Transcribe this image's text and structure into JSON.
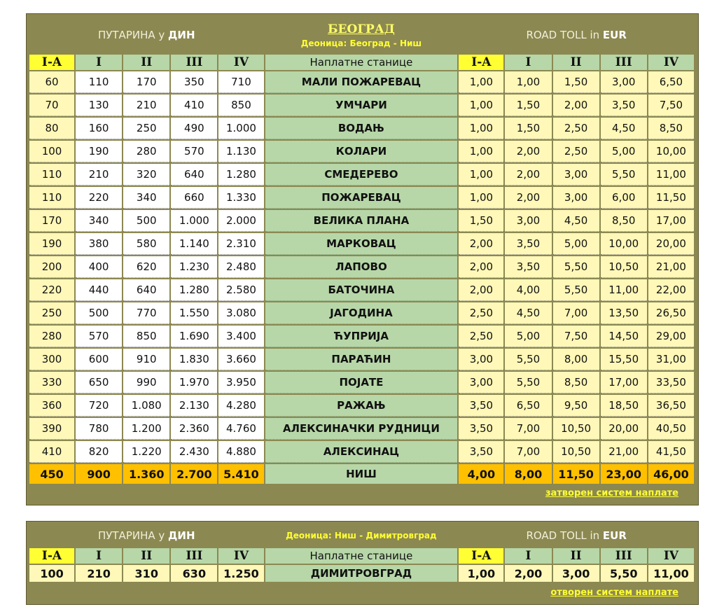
{
  "header": {
    "din_prefix": "ПУТАРИНА у",
    "din_unit": "ДИН",
    "city": "БЕОГРАД",
    "section1": "Деоница: Београд - Ниш",
    "eur_prefix": "ROAD TOLL in",
    "eur_unit": "EUR",
    "col_ia": "I-A",
    "col_i": "I",
    "col_ii": "II",
    "col_iii": "III",
    "col_iv": "IV",
    "stations_label": "Наплатне станице"
  },
  "rows": [
    {
      "din": [
        "60",
        "110",
        "170",
        "350",
        "710"
      ],
      "station": "МАЛИ ПОЖАРЕВАЦ",
      "eur": [
        "1,00",
        "1,00",
        "1,50",
        "3,00",
        "6,50"
      ]
    },
    {
      "din": [
        "70",
        "130",
        "210",
        "410",
        "850"
      ],
      "station": "УМЧАРИ",
      "eur": [
        "1,00",
        "1,50",
        "2,00",
        "3,50",
        "7,50"
      ]
    },
    {
      "din": [
        "80",
        "160",
        "250",
        "490",
        "1.000"
      ],
      "station": "ВОДАЊ",
      "eur": [
        "1,00",
        "1,50",
        "2,50",
        "4,50",
        "8,50"
      ]
    },
    {
      "din": [
        "100",
        "190",
        "280",
        "570",
        "1.130"
      ],
      "station": "КОЛАРИ",
      "eur": [
        "1,00",
        "2,00",
        "2,50",
        "5,00",
        "10,00"
      ]
    },
    {
      "din": [
        "110",
        "210",
        "320",
        "640",
        "1.280"
      ],
      "station": "СМЕДЕРЕВО",
      "eur": [
        "1,00",
        "2,00",
        "3,00",
        "5,50",
        "11,00"
      ]
    },
    {
      "din": [
        "110",
        "220",
        "340",
        "660",
        "1.330"
      ],
      "station": "ПОЖАРЕВАЦ",
      "eur": [
        "1,00",
        "2,00",
        "3,00",
        "6,00",
        "11,50"
      ]
    },
    {
      "din": [
        "170",
        "340",
        "500",
        "1.000",
        "2.000"
      ],
      "station": "ВЕЛИКА ПЛАНА",
      "eur": [
        "1,50",
        "3,00",
        "4,50",
        "8,50",
        "17,00"
      ]
    },
    {
      "din": [
        "190",
        "380",
        "580",
        "1.140",
        "2.310"
      ],
      "station": "МАРКОВАЦ",
      "eur": [
        "2,00",
        "3,50",
        "5,00",
        "10,00",
        "20,00"
      ]
    },
    {
      "din": [
        "200",
        "400",
        "620",
        "1.230",
        "2.480"
      ],
      "station": "ЛАПОВО",
      "eur": [
        "2,00",
        "3,50",
        "5,50",
        "10,50",
        "21,00"
      ]
    },
    {
      "din": [
        "220",
        "440",
        "640",
        "1.280",
        "2.580"
      ],
      "station": "БАТОЧИНА",
      "eur": [
        "2,00",
        "4,00",
        "5,50",
        "11,00",
        "22,00"
      ]
    },
    {
      "din": [
        "250",
        "500",
        "770",
        "1.550",
        "3.080"
      ],
      "station": "ЈАГОДИНА",
      "eur": [
        "2,50",
        "4,50",
        "7,00",
        "13,50",
        "26,50"
      ]
    },
    {
      "din": [
        "280",
        "570",
        "850",
        "1.690",
        "3.400"
      ],
      "station": "ЋУПРИЈА",
      "eur": [
        "2,50",
        "5,00",
        "7,50",
        "14,50",
        "29,00"
      ]
    },
    {
      "din": [
        "300",
        "600",
        "910",
        "1.830",
        "3.660"
      ],
      "station": "ПАРАЋИН",
      "eur": [
        "3,00",
        "5,50",
        "8,00",
        "15,50",
        "31,00"
      ]
    },
    {
      "din": [
        "330",
        "650",
        "990",
        "1.970",
        "3.950"
      ],
      "station": "ПОЈАТЕ",
      "eur": [
        "3,00",
        "5,50",
        "8,50",
        "17,00",
        "33,50"
      ]
    },
    {
      "din": [
        "360",
        "720",
        "1.080",
        "2.130",
        "4.280"
      ],
      "station": "РАЖАЊ",
      "eur": [
        "3,50",
        "6,50",
        "9,50",
        "18,50",
        "36,50"
      ]
    },
    {
      "din": [
        "390",
        "780",
        "1.200",
        "2.360",
        "4.760"
      ],
      "station": "АЛЕКСИНАЧКИ РУДНИЦИ",
      "eur": [
        "3,50",
        "7,00",
        "10,50",
        "20,00",
        "40,50"
      ]
    },
    {
      "din": [
        "410",
        "820",
        "1.220",
        "2.430",
        "4.880"
      ],
      "station": "АЛЕКСИНАЦ",
      "eur": [
        "3,50",
        "7,00",
        "10,50",
        "21,00",
        "41,50"
      ]
    }
  ],
  "final_row": {
    "din": [
      "450",
      "900",
      "1.360",
      "2.700",
      "5.410"
    ],
    "station": "НИШ",
    "eur": [
      "4,00",
      "8,00",
      "11,50",
      "23,00",
      "46,00"
    ]
  },
  "footer1": "затворен систем наплате",
  "section2": {
    "title": "Деоница: Ниш - Димитровград",
    "row": {
      "din": [
        "100",
        "210",
        "310",
        "630",
        "1.250"
      ],
      "station": "ДИМИТРОВГРАД",
      "eur": [
        "1,00",
        "2,00",
        "3,00",
        "5,50",
        "11,00"
      ]
    },
    "footer": "отворен систем наплате"
  }
}
